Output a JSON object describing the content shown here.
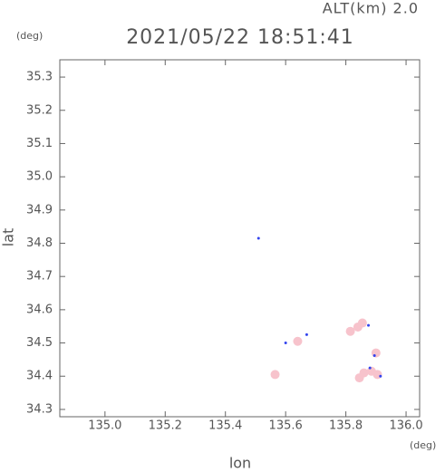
{
  "chart_data": {
    "type": "scatter",
    "title": "2021/05/22 18:51:41",
    "altitude_label": "ALT(km) 2.0",
    "y_unit": "(deg)",
    "x_unit": "(deg)",
    "ylabel": "lat",
    "xlabel": "lon",
    "xlim": [
      134.85,
      136.045
    ],
    "ylim": [
      34.278,
      35.352
    ],
    "xticks": [
      {
        "value": 135,
        "label": "135.0"
      },
      135.2,
      135.4,
      135.6,
      135.8,
      {
        "value": 136,
        "label": "136.0"
      }
    ],
    "yticks": [
      34.3,
      34.4,
      34.5,
      34.6,
      34.7,
      34.8,
      34.9,
      {
        "value": 35,
        "label": "35.0"
      },
      35.1,
      35.2,
      35.3
    ],
    "series": [
      {
        "color": "#f7c3cc",
        "x": [
          135.565,
          135.64,
          135.815,
          135.84,
          135.855,
          135.9,
          135.86,
          135.885,
          135.905,
          135.845
        ],
        "values": [
          34.405,
          34.505,
          34.535,
          34.548,
          34.56,
          34.47,
          34.41,
          34.415,
          34.405,
          34.395
        ]
      },
      {
        "color": "#3344ee",
        "x": [
          135.51,
          135.6,
          135.67,
          135.875,
          135.895,
          135.88,
          135.915
        ],
        "values": [
          34.815,
          34.5,
          34.525,
          34.553,
          34.462,
          34.425,
          34.4
        ]
      }
    ]
  }
}
